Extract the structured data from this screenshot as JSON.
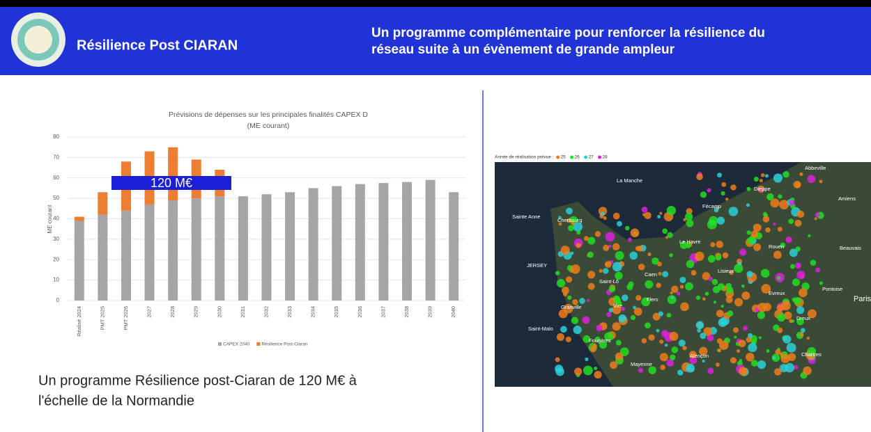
{
  "header": {
    "title": "Résilience Post CIARAN",
    "subtitle_lines": [
      "Un programme complémentaire pour renforcer la résilience du",
      "réseau suite à un évènement de grande ampleur"
    ]
  },
  "chart_data": {
    "type": "bar",
    "stacked": true,
    "title_lines": [
      "Prévisions de dépenses sur les principales finalités CAPEX D",
      "(ME courant)"
    ],
    "y_label": "ME courant",
    "categories": [
      "Réalisé 2024",
      "PMT 2025",
      "PMT 2026",
      "2027",
      "2028",
      "2029",
      "2030",
      "2031",
      "2032",
      "2033",
      "2034",
      "2035",
      "2036",
      "2037",
      "2038",
      "2039",
      "2040"
    ],
    "series": [
      {
        "name": "CAPEX 2040",
        "color": "#a5a5a5",
        "values": [
          39,
          42,
          44,
          47,
          49,
          50,
          51,
          51,
          52,
          53,
          55,
          56,
          57,
          57.5,
          58,
          59,
          53
        ]
      },
      {
        "name": "Résilience Post-Ciaran",
        "color": "#ed7d31",
        "values": [
          2,
          11,
          24,
          26,
          26,
          19,
          13,
          null,
          null,
          null,
          null,
          null,
          null,
          null,
          null,
          null,
          null
        ]
      }
    ],
    "ylim": [
      0,
      80
    ],
    "yticks": [
      0,
      10,
      20,
      30,
      40,
      50,
      60,
      70,
      80
    ],
    "grid": true,
    "legend": "bottom",
    "annotation": "120 M€"
  },
  "caption_lines": [
    "Un programme Résilience post-Ciaran de 120 M€ à",
    "l'échelle de la Normandie"
  ],
  "map": {
    "legend_title": "Année de réalisation prévue :",
    "legend": [
      {
        "label": "25",
        "color": "#ef7d1a"
      },
      {
        "label": "26",
        "color": "#22dd22"
      },
      {
        "label": "27",
        "color": "#2ad0d8"
      },
      {
        "label": "28",
        "color": "#e020e0"
      }
    ],
    "places": [
      "La Manche",
      "Sainte Anne",
      "Cherbourg",
      "Le Havre",
      "Caen",
      "Saint-Lô",
      "Rouen",
      "Dieppe",
      "Fécamp",
      "Abbeville",
      "Amiens",
      "Beauvais",
      "Evreux",
      "Pontoise",
      "Paris",
      "Dreux",
      "Alençon",
      "Chartres",
      "Mayenne",
      "Fougères",
      "Vire",
      "Granville",
      "Saint-Malo",
      "JERSEY",
      "Flers",
      "Lisieux"
    ]
  }
}
